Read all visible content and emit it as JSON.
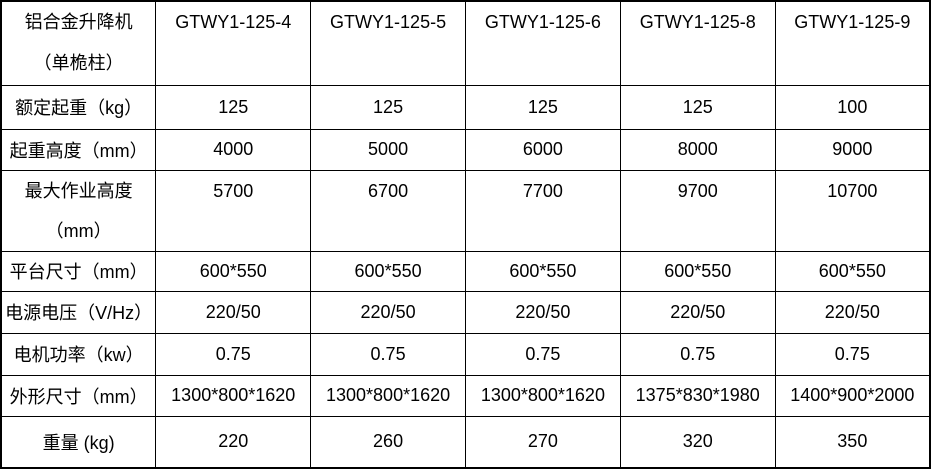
{
  "table": {
    "product": {
      "line1": "铝合金升降机",
      "line2": "（单桅柱）"
    },
    "models": [
      "GTWY1-125-4",
      "GTWY1-125-5",
      "GTWY1-125-6",
      "GTWY1-125-8",
      "GTWY1-125-9"
    ],
    "rows": [
      {
        "label": "额定起重（kg）",
        "values": [
          "125",
          "125",
          "125",
          "125",
          "100"
        ]
      },
      {
        "label": "起重高度（mm）",
        "values": [
          "4000",
          "5000",
          "6000",
          "8000",
          "9000"
        ]
      },
      {
        "label_line1": "最大作业高度",
        "label_line2": "（mm）",
        "values": [
          "5700",
          "6700",
          "7700",
          "9700",
          "10700"
        ]
      },
      {
        "label": "平台尺寸（mm）",
        "values": [
          "600*550",
          "600*550",
          "600*550",
          "600*550",
          "600*550"
        ]
      },
      {
        "label": "电源电压（V/Hz）",
        "values": [
          "220/50",
          "220/50",
          "220/50",
          "220/50",
          "220/50"
        ]
      },
      {
        "label": "电机功率（kw）",
        "values": [
          "0.75",
          "0.75",
          "0.75",
          "0.75",
          "0.75"
        ]
      },
      {
        "label": "外形尺寸（mm）",
        "values": [
          "1300*800*1620",
          "1300*800*1620",
          "1300*800*1620",
          "1375*830*1980",
          "1400*900*2000"
        ]
      },
      {
        "label": "重量 (kg)",
        "values": [
          "220",
          "260",
          "270",
          "320",
          "350"
        ]
      }
    ],
    "colors": {
      "border": "#000000",
      "text": "#000000",
      "background": "#ffffff"
    }
  }
}
